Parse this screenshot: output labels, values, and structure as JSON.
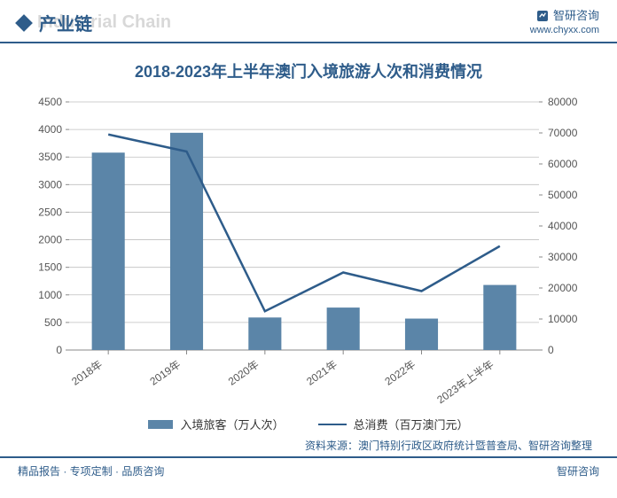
{
  "header": {
    "section_label": "产业链",
    "section_shadow": "Industrial Chain",
    "brand_name": "智研咨询",
    "brand_url": "www.chyxx.com"
  },
  "chart": {
    "title": "2018-2023年上半年澳门入境旅游人次和消费情况",
    "type": "bar+line",
    "categories": [
      "2018年",
      "2019年",
      "2020年",
      "2021年",
      "2022年",
      "2023年上半年"
    ],
    "bars": {
      "label": "入境旅客（万人次）",
      "values": [
        3580,
        3940,
        590,
        770,
        570,
        1180
      ],
      "color": "#5b85a8"
    },
    "line": {
      "label": "总消费（百万澳门元）",
      "values": [
        69500,
        64000,
        12500,
        25000,
        19000,
        33500
      ],
      "color": "#2e5c8a",
      "width": 2.5
    },
    "y_left": {
      "min": 0,
      "max": 4500,
      "step": 500
    },
    "y_right": {
      "min": 0,
      "max": 80000,
      "step": 10000
    },
    "plot": {
      "bg": "#ffffff",
      "grid_color": "#bfbfbf",
      "axis_line_color": "#888888",
      "bar_width_ratio": 0.42,
      "label_color": "#555555",
      "label_fontsize": 12,
      "xlabel_rotation": -35
    }
  },
  "source_text": "资料来源：澳门特别行政区政府统计暨普查局、智研咨询整理",
  "footer": {
    "left": "精品报告 · 专项定制 · 品质咨询",
    "right": "智研咨询"
  }
}
